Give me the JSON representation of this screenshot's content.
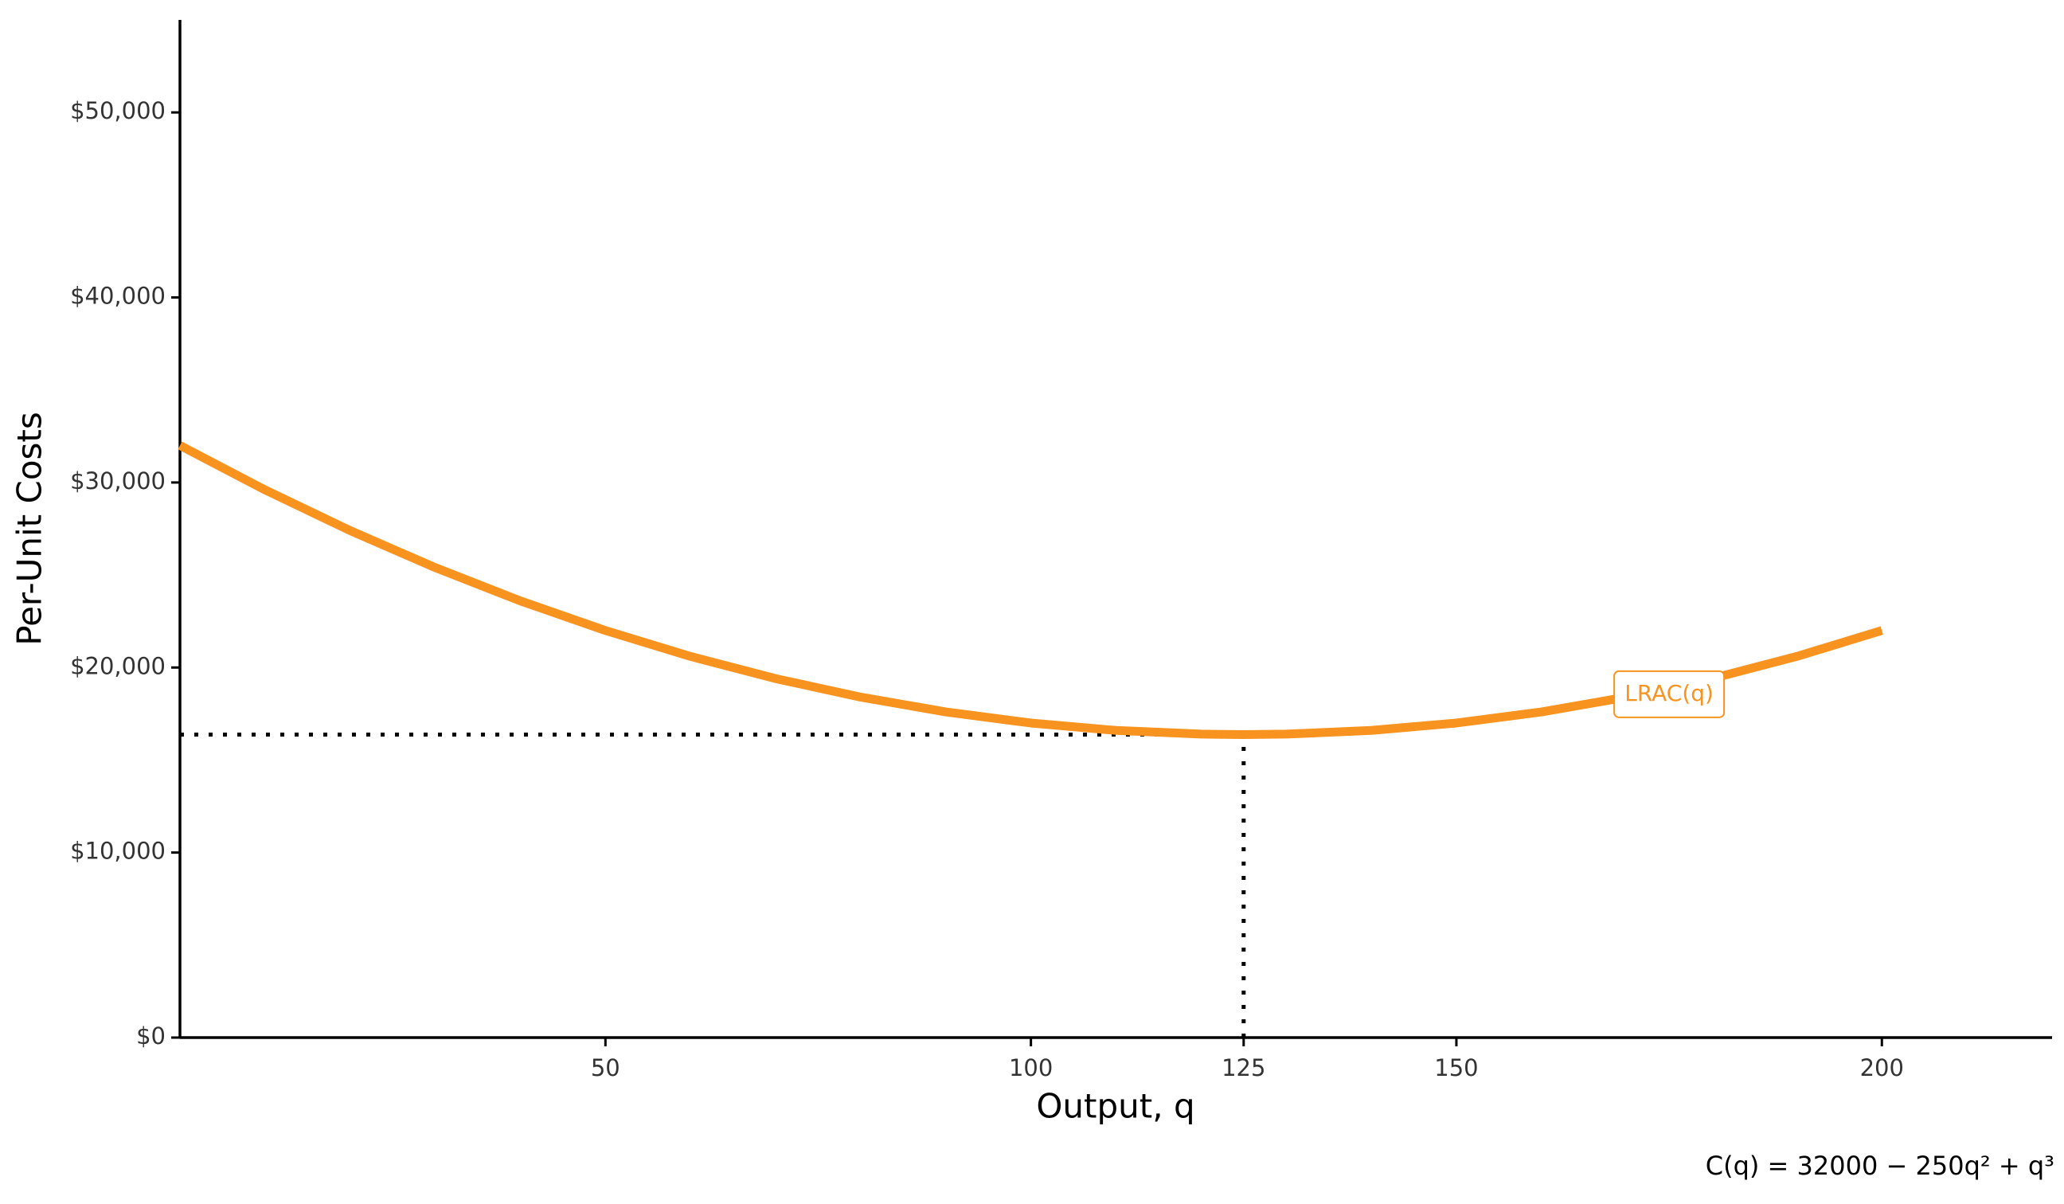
{
  "chart_data": {
    "type": "line",
    "x_label": "Output, q",
    "y_label": "Per-Unit Costs",
    "caption": "C(q) = 32000 − 250q² + q³",
    "x": [
      0,
      10,
      20,
      30,
      40,
      50,
      60,
      70,
      80,
      90,
      100,
      110,
      120,
      125,
      130,
      140,
      150,
      160,
      170,
      180,
      190,
      200
    ],
    "series": [
      {
        "name": "LRAC(q)",
        "color": "#f7931e",
        "values": [
          32000,
          29600,
          27400,
          25400,
          23600,
          22000,
          20600,
          19400,
          18400,
          17600,
          17000,
          16600,
          16400,
          16375,
          16400,
          16600,
          17000,
          17600,
          18400,
          19400,
          20600,
          22000
        ]
      }
    ],
    "reference": {
      "x": 125,
      "y": 16375
    },
    "xlim": [
      0,
      220
    ],
    "ylim": [
      0,
      55000
    ],
    "xticks": [
      50,
      100,
      125,
      150,
      200
    ],
    "yticks": [
      {
        "value": 0,
        "label": "$0"
      },
      {
        "value": 10000,
        "label": "$10,000"
      },
      {
        "value": 20000,
        "label": "$20,000"
      },
      {
        "value": 30000,
        "label": "$30,000"
      },
      {
        "value": 40000,
        "label": "$40,000"
      },
      {
        "value": 50000,
        "label": "$50,000"
      }
    ],
    "grid": false
  }
}
